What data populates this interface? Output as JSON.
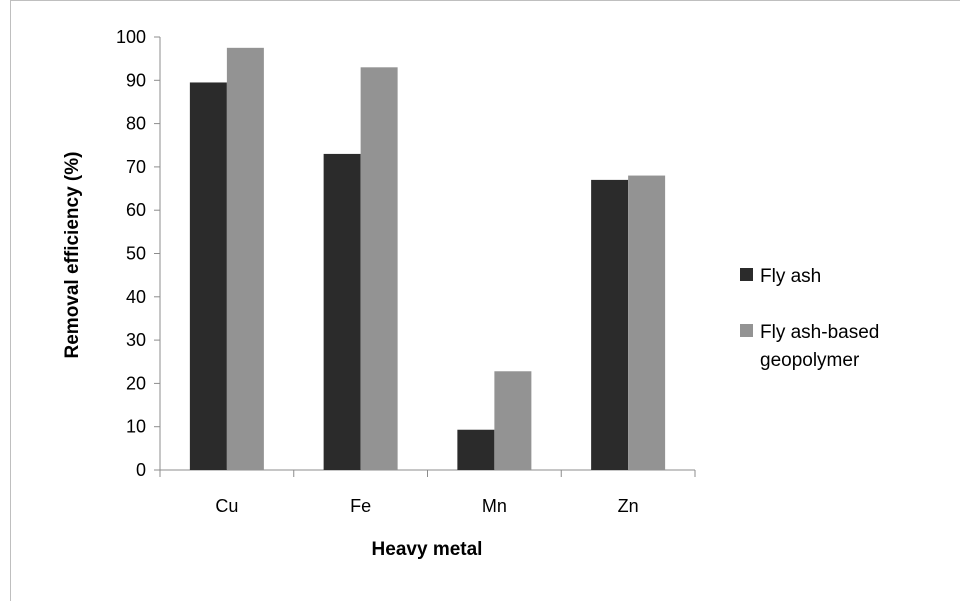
{
  "chart_data": {
    "type": "bar",
    "title": "",
    "xlabel": "Heavy metal",
    "ylabel": "Removal efficiency (%)",
    "categories": [
      "Cu",
      "Fe",
      "Mn",
      "Zn"
    ],
    "series": [
      {
        "name": "Fly ash",
        "values": [
          89.5,
          73,
          9.3,
          67
        ],
        "color": "#2b2b2b"
      },
      {
        "name": "Fly ash-based geopolymer",
        "values": [
          97.5,
          93,
          22.8,
          68
        ],
        "color": "#939393"
      }
    ],
    "ylim": [
      0,
      100
    ],
    "yticks": [
      0,
      10,
      20,
      30,
      40,
      50,
      60,
      70,
      80,
      90,
      100
    ],
    "grid": false,
    "legend_position": "right",
    "legend_lines": [
      [
        "Fly ash"
      ],
      [
        "Fly ash-based",
        "geopolymer"
      ]
    ]
  }
}
